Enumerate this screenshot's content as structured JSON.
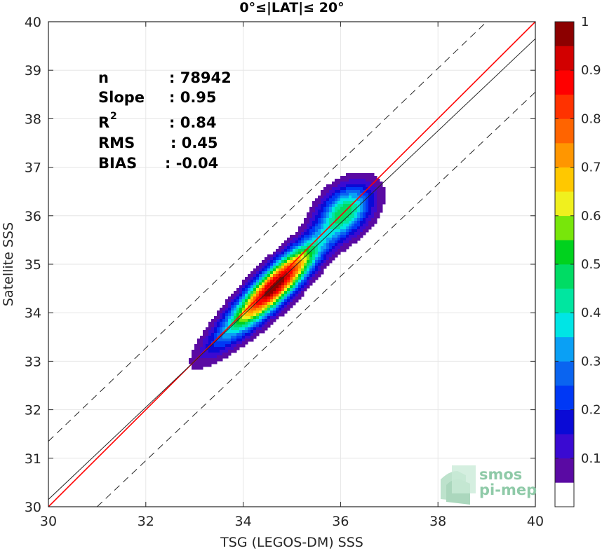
{
  "chart_data": {
    "type": "heatmap",
    "title": "0°≤|LAT|≤ 20°",
    "xlabel": "TSG (LEGOS-DM) SSS",
    "ylabel": "Satellite SSS",
    "xlim": [
      30,
      40
    ],
    "ylim": [
      30,
      40
    ],
    "xticks": [
      "30",
      "32",
      "34",
      "36",
      "38",
      "40"
    ],
    "yticks": [
      "30",
      "31",
      "32",
      "33",
      "34",
      "35",
      "36",
      "37",
      "38",
      "39",
      "40"
    ],
    "grid": true,
    "stats": [
      {
        "label": "n",
        "value": ": 78942"
      },
      {
        "label": "Slope",
        "value": ": 0.95"
      },
      {
        "label": "R",
        "sup": "2",
        "value": ": 0.84"
      },
      {
        "label": "RMS",
        "value": ": 0.45"
      },
      {
        "label": "BIAS",
        "value": ": -0.04"
      }
    ],
    "lines": [
      {
        "name": "identity",
        "color": "#ff0000",
        "style": "solid",
        "from": [
          30,
          30
        ],
        "to": [
          40,
          40
        ]
      },
      {
        "name": "regression",
        "color": "#262626",
        "style": "solid",
        "from": [
          30,
          30.15
        ],
        "to": [
          40,
          39.65
        ]
      },
      {
        "name": "upper-bound",
        "color": "#262626",
        "style": "dashed",
        "from": [
          30,
          31.35
        ],
        "to": [
          39,
          40
        ]
      },
      {
        "name": "lower-bound",
        "color": "#262626",
        "style": "dashed",
        "from": [
          31,
          30
        ],
        "to": [
          40,
          38.55
        ]
      }
    ],
    "density_peaks": [
      {
        "x": 34.65,
        "y": 34.55,
        "value": 1.0
      },
      {
        "x": 36.1,
        "y": 36.1,
        "value": 0.45
      }
    ],
    "colorbar": {
      "ticks": [
        "0.1",
        "0.2",
        "0.3",
        "0.4",
        "0.5",
        "0.6",
        "0.7",
        "0.8",
        "0.9",
        "1"
      ],
      "levels": [
        0.05,
        0.1,
        0.15,
        0.2,
        0.25,
        0.3,
        0.35,
        0.4,
        0.45,
        0.5,
        0.55,
        0.6,
        0.65,
        0.7,
        0.75,
        0.8,
        0.85,
        0.9,
        0.95,
        1.0
      ],
      "colors": [
        "#ffffff",
        "#5a0aa3",
        "#3a0ad2",
        "#0a0ad6",
        "#0038f5",
        "#0a64f0",
        "#0aa0f5",
        "#00e5e5",
        "#00e6a0",
        "#00dc64",
        "#00d21e",
        "#78e60a",
        "#f0f01e",
        "#ffc800",
        "#ff9600",
        "#ff6400",
        "#ff3200",
        "#ff0000",
        "#d20000",
        "#8c0000"
      ]
    }
  },
  "logo": {
    "line1": "smos",
    "line2": "pi-mep"
  }
}
